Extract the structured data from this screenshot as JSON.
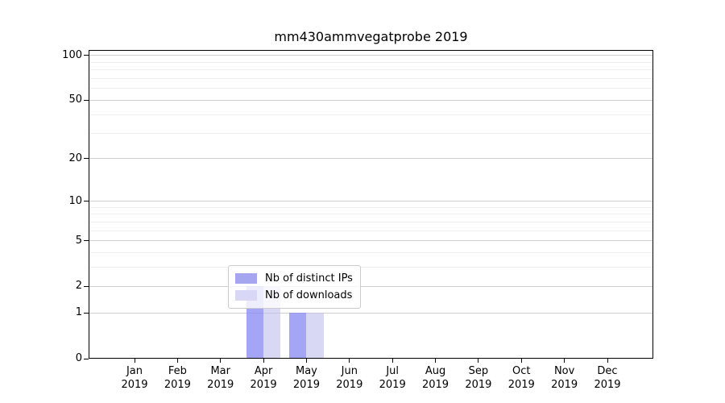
{
  "chart_data": {
    "type": "bar",
    "title": "mm430ammvegatprobe 2019",
    "xlabel": "",
    "ylabel": "",
    "categories": [
      "Jan",
      "Feb",
      "Mar",
      "Apr",
      "May",
      "Jun",
      "Jul",
      "Aug",
      "Sep",
      "Oct",
      "Nov",
      "Dec"
    ],
    "x_year_label": "2019",
    "series": [
      {
        "name": "Nb of distinct IPs",
        "swatch_color": "#a5a5f0",
        "bar_color": "rgba(130,130,242,0.72)",
        "values": [
          0,
          0,
          0,
          2,
          1,
          0,
          0,
          0,
          0,
          0,
          0,
          0
        ]
      },
      {
        "name": "Nb of downloads",
        "swatch_color": "#d8d8f6",
        "bar_color": "rgba(193,193,238,0.63)",
        "values": [
          0,
          0,
          0,
          2,
          1,
          0,
          0,
          0,
          0,
          0,
          0,
          0
        ]
      }
    ],
    "y_axis": {
      "scale": "log1p",
      "major_ticks": [
        0,
        1,
        2,
        5,
        10,
        20,
        50,
        100
      ],
      "minor_gridlines": [
        3,
        4,
        6,
        7,
        8,
        9,
        30,
        40,
        60,
        70,
        80,
        90
      ],
      "top_value": 108.7
    },
    "grid": {
      "major_color": "#cfcfcf",
      "minor_color": "#ededed"
    },
    "legend": {
      "position": "lower-center",
      "border_color": "#cccccc",
      "background": "rgba(255,255,255,0.8)"
    },
    "axis_color": "#000000",
    "background_color": "#ffffff"
  }
}
